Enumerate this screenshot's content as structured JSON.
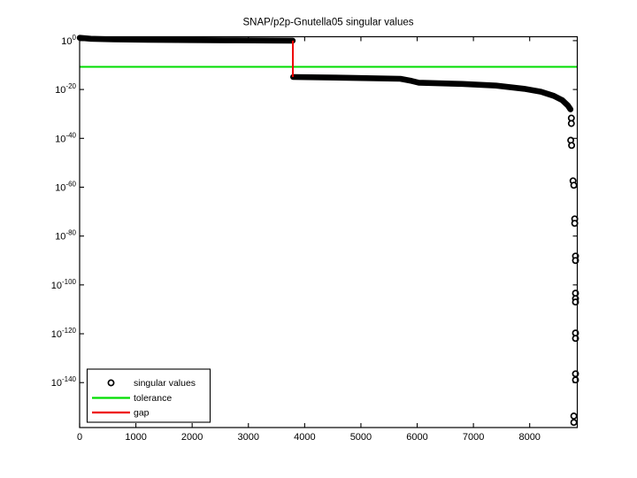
{
  "title": "SNAP/p2p-Gnutella05 singular values",
  "legend": {
    "items": [
      {
        "label": "singular values",
        "marker": "circle",
        "color": "#000000"
      },
      {
        "label": "tolerance",
        "marker": "line",
        "color": "#00dd00"
      },
      {
        "label": "gap",
        "marker": "line",
        "color": "#ee0000"
      }
    ]
  },
  "chart_data": {
    "type": "scatter",
    "title": "SNAP/p2p-Gnutella05 singular values",
    "xlabel": "",
    "ylabel": "",
    "marker": "o",
    "grid": false,
    "legend_position": "southwest",
    "xlim": [
      0,
      8846
    ],
    "ylim_log10": [
      -158.4,
      1.6
    ],
    "xticks": [
      0,
      1000,
      2000,
      3000,
      4000,
      5000,
      6000,
      7000,
      8000
    ],
    "ytick_exponents": [
      0,
      -20,
      -40,
      -60,
      -80,
      -100,
      -120,
      -140
    ],
    "tolerance": 2e-11,
    "tolerance_log10": -10.7,
    "gap": {
      "index": 3790,
      "log10_from": 0.0,
      "log10_to": -14.9
    },
    "singular_values_log10_segments": [
      {
        "name": "above-tolerance-band",
        "points": [
          [
            1,
            1.15
          ],
          [
            200,
            0.75
          ],
          [
            600,
            0.5
          ],
          [
            1200,
            0.35
          ],
          [
            2000,
            0.22
          ],
          [
            2800,
            0.12
          ],
          [
            3400,
            0.05
          ],
          [
            3789,
            0.0
          ]
        ]
      },
      {
        "name": "below-tolerance-band",
        "points": [
          [
            3795,
            -14.9
          ],
          [
            4800,
            -15.2
          ],
          [
            5700,
            -15.6
          ],
          [
            5900,
            -16.5
          ],
          [
            6030,
            -17.2
          ],
          [
            6800,
            -17.7
          ],
          [
            7400,
            -18.4
          ],
          [
            7900,
            -19.7
          ],
          [
            8200,
            -20.9
          ],
          [
            8430,
            -22.6
          ],
          [
            8580,
            -24.4
          ],
          [
            8680,
            -26.6
          ],
          [
            8725,
            -28.1
          ]
        ]
      }
    ],
    "singular_values_log10_isolated": [
      [
        8740,
        -31.7
      ],
      [
        8740,
        -33.9
      ],
      [
        8730,
        -40.8
      ],
      [
        8745,
        -42.9
      ],
      [
        8770,
        -57.4
      ],
      [
        8785,
        -59.2
      ],
      [
        8800,
        -73.0
      ],
      [
        8800,
        -74.8
      ],
      [
        8815,
        -88.2
      ],
      [
        8815,
        -90.0
      ],
      [
        8815,
        -103.4
      ],
      [
        8815,
        -105.6
      ],
      [
        8815,
        -107.0
      ],
      [
        8815,
        -119.7
      ],
      [
        8815,
        -121.9
      ],
      [
        8815,
        -136.4
      ],
      [
        8815,
        -138.9
      ],
      [
        8785,
        -153.7
      ],
      [
        8785,
        -156.3
      ]
    ],
    "colors": {
      "singular_values": "#000000",
      "tolerance": "#00dd00",
      "gap": "#ee0000",
      "axis": "#000000",
      "background": "#ffffff"
    }
  }
}
